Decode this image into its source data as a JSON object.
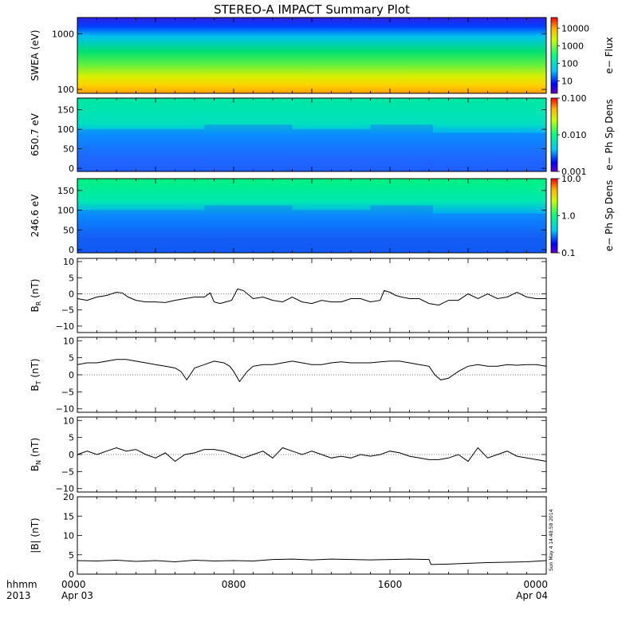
{
  "title": "STEREO-A IMPACT Summary Plot",
  "x_axis": {
    "ticks": [
      {
        "hour": 0,
        "label": "0000",
        "sub": "Apr 03"
      },
      {
        "hour": 8,
        "label": "0800",
        "sub": ""
      },
      {
        "hour": 16,
        "label": "1600",
        "sub": ""
      },
      {
        "hour": 24,
        "label": "0000",
        "sub": "Apr 04"
      }
    ],
    "corner_top": "hhmm",
    "corner_bottom": "2013"
  },
  "timestamp": "Sun May  4 14:48:58 2014",
  "chart_data": [
    {
      "id": "swea",
      "type": "heatmap",
      "ylabel": "SWEA (eV)",
      "yscale": "log",
      "ylim": [
        85,
        1950
      ],
      "yticks": [
        100,
        1000
      ],
      "ytick_labels": [
        "100",
        "1000"
      ],
      "colorbar": {
        "label": "e− Flux",
        "scale": "log",
        "ticks": [
          "10",
          "100",
          "1000",
          "10000"
        ],
        "tick_values": [
          10,
          100,
          1000,
          10000
        ],
        "range": [
          2,
          40000
        ]
      }
    },
    {
      "id": "pad650",
      "type": "heatmap",
      "ylabel": "650.7 eV",
      "ylim": [
        -8,
        180
      ],
      "yticks": [
        0,
        50,
        100,
        150
      ],
      "ytick_labels": [
        "0",
        "50",
        "100",
        "150"
      ],
      "colorbar": {
        "label": "e− Ph Sp Dens",
        "scale": "log",
        "ticks": [
          "0.001",
          "0.010",
          "0.100"
        ],
        "tick_values": [
          0.001,
          0.01,
          0.1
        ],
        "range": [
          0.001,
          0.1
        ]
      }
    },
    {
      "id": "pad246",
      "type": "heatmap",
      "ylabel": "246.6 eV",
      "ylim": [
        -8,
        180
      ],
      "yticks": [
        0,
        50,
        100,
        150
      ],
      "ytick_labels": [
        "0",
        "50",
        "100",
        "150"
      ],
      "colorbar": {
        "label": "e− Ph Sp Dens",
        "scale": "log",
        "ticks": [
          "0.1",
          "1.0",
          "10.0"
        ],
        "tick_values": [
          0.1,
          1,
          10
        ],
        "range": [
          0.1,
          10
        ]
      }
    },
    {
      "id": "br",
      "type": "line",
      "ylabel": "B",
      "ylabel_sub": "R",
      "ylabel_unit": " (nT)",
      "ylim": [
        -12,
        11
      ],
      "yticks": [
        -10,
        -5,
        0,
        5,
        10
      ],
      "ytick_labels": [
        "−10",
        "−5",
        "0",
        "5",
        "10"
      ],
      "x": [
        0,
        0.5,
        1,
        1.5,
        2,
        2.3,
        2.6,
        3,
        3.5,
        4,
        4.5,
        5,
        5.5,
        6,
        6.5,
        6.8,
        7,
        7.3,
        7.6,
        7.9,
        8.2,
        8.5,
        9,
        9.5,
        10,
        10.5,
        11,
        11.5,
        12,
        12.5,
        13,
        13.5,
        14,
        14.5,
        15,
        15.5,
        15.7,
        16,
        16.3,
        16.6,
        17,
        17.5,
        18,
        18.5,
        19,
        19.5,
        20,
        20.5,
        21,
        21.5,
        22,
        22.5,
        23,
        23.5,
        24
      ],
      "values": [
        -1.5,
        -2,
        -1,
        -0.5,
        0.5,
        0.3,
        -1,
        -2,
        -2.5,
        -2.5,
        -2.7,
        -2,
        -1.5,
        -1,
        -1,
        0.3,
        -2.5,
        -3,
        -2.5,
        -2,
        1.5,
        1,
        -1.5,
        -1,
        -2,
        -2.5,
        -1,
        -2.5,
        -3,
        -2,
        -2.5,
        -2.5,
        -1.5,
        -1.5,
        -2.5,
        -2,
        1,
        0.5,
        -0.5,
        -1,
        -1.5,
        -1.5,
        -3,
        -3.5,
        -2,
        -2,
        0,
        -1.5,
        0,
        -1.5,
        -1,
        0.5,
        -1,
        -1.5,
        -1.5
      ]
    },
    {
      "id": "bt",
      "type": "line",
      "ylabel": "B",
      "ylabel_sub": "T",
      "ylabel_unit": " (nT)",
      "ylim": [
        -11,
        11
      ],
      "yticks": [
        -10,
        -5,
        0,
        5,
        10
      ],
      "ytick_labels": [
        "−10",
        "−5",
        "0",
        "5",
        "10"
      ],
      "x": [
        0,
        0.5,
        1,
        1.5,
        2,
        2.5,
        3,
        3.5,
        4,
        4.5,
        5,
        5.3,
        5.6,
        6,
        6.5,
        7,
        7.5,
        7.8,
        8,
        8.3,
        8.7,
        9,
        9.5,
        10,
        10.5,
        11,
        11.5,
        12,
        12.5,
        13,
        13.5,
        14,
        14.5,
        15,
        15.5,
        16,
        16.5,
        17,
        17.5,
        18,
        18.3,
        18.6,
        19,
        19.5,
        20,
        20.5,
        21,
        21.5,
        22,
        22.5,
        23,
        23.5,
        24
      ],
      "values": [
        3,
        3.5,
        3.5,
        4,
        4.5,
        4.5,
        4,
        3.5,
        3,
        2.5,
        2,
        1,
        -1.5,
        2,
        3,
        4,
        3.5,
        2.5,
        1,
        -2,
        1,
        2.5,
        3,
        3,
        3.5,
        4,
        3.5,
        3,
        3,
        3.5,
        3.8,
        3.5,
        3.5,
        3.5,
        3.8,
        4,
        4,
        3.5,
        3,
        2.5,
        0,
        -1.5,
        -1,
        1,
        2.5,
        3,
        2.5,
        2.5,
        3,
        2.8,
        3,
        3,
        2.5
      ]
    },
    {
      "id": "bn",
      "type": "line",
      "ylabel": "B",
      "ylabel_sub": "N",
      "ylabel_unit": " (nT)",
      "ylim": [
        -11,
        11
      ],
      "yticks": [
        -10,
        -5,
        0,
        5,
        10
      ],
      "ytick_labels": [
        "−10",
        "−5",
        "0",
        "5",
        "10"
      ],
      "x": [
        0,
        0.5,
        1,
        1.5,
        2,
        2.5,
        3,
        3.5,
        4,
        4.5,
        5,
        5.5,
        6,
        6.5,
        7,
        7.5,
        8,
        8.5,
        9,
        9.5,
        10,
        10.5,
        11,
        11.5,
        12,
        12.5,
        13,
        13.5,
        14,
        14.5,
        15,
        15.5,
        16,
        16.5,
        17,
        17.5,
        18,
        18.5,
        19,
        19.5,
        20,
        20.5,
        21,
        21.5,
        22,
        22.5,
        23,
        23.5,
        24
      ],
      "values": [
        0,
        1,
        0,
        1,
        2,
        1,
        1.5,
        0,
        -1,
        0.5,
        -2,
        0,
        0.5,
        1.5,
        1.5,
        1,
        0,
        -1,
        0,
        1,
        -1,
        2,
        1,
        0,
        1,
        0,
        -1,
        -0.5,
        -1,
        0,
        -0.5,
        0,
        1,
        0.5,
        -0.5,
        -1,
        -1.5,
        -1.5,
        -1,
        0,
        -2,
        2,
        -1,
        0,
        1,
        -0.5,
        -1,
        -1.5,
        -2
      ]
    },
    {
      "id": "bmag",
      "type": "line",
      "ylabel": "|B| (nT)",
      "ylim": [
        0,
        20
      ],
      "yticks": [
        0,
        5,
        10,
        15,
        20
      ],
      "ytick_labels": [
        "0",
        "5",
        "10",
        "15",
        "20"
      ],
      "x": [
        0,
        1,
        2,
        3,
        4,
        5,
        6,
        7,
        8,
        9,
        10,
        11,
        12,
        13,
        14,
        15,
        16,
        17,
        18,
        18.1,
        19,
        20,
        21,
        22,
        23,
        24
      ],
      "values": [
        3.5,
        3.4,
        3.6,
        3.3,
        3.5,
        3.2,
        3.6,
        3.4,
        3.5,
        3.4,
        3.8,
        3.9,
        3.7,
        3.9,
        3.8,
        3.7,
        3.8,
        3.9,
        3.8,
        2.5,
        2.6,
        2.8,
        3.0,
        3.1,
        3.2,
        3.5
      ]
    }
  ]
}
